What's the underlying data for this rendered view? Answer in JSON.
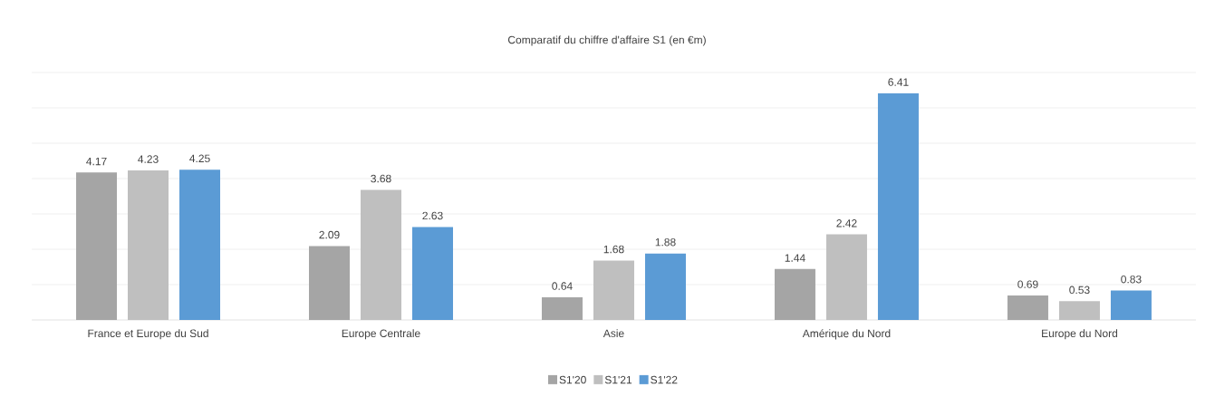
{
  "chart_data": {
    "type": "bar",
    "title": "Comparatif du chiffre d'affaire S1 (en €m)",
    "categories": [
      "France et Europe du Sud",
      "Europe Centrale",
      "Asie",
      "Amérique du Nord",
      "Europe du Nord"
    ],
    "series": [
      {
        "name": "S1'20",
        "color": "#a5a5a5",
        "values": [
          4.17,
          2.09,
          0.64,
          1.44,
          0.69
        ]
      },
      {
        "name": "S1'21",
        "color": "#bfbfbf",
        "values": [
          4.23,
          3.68,
          1.68,
          2.42,
          0.53
        ]
      },
      {
        "name": "S1'22",
        "color": "#5b9bd5",
        "values": [
          4.25,
          2.63,
          1.88,
          6.41,
          0.83
        ]
      }
    ],
    "ylim": [
      0,
      7
    ],
    "yticks": [
      {
        "value": 0,
        "label": null
      },
      {
        "value": 1,
        "label": null
      },
      {
        "value": 2,
        "label": null
      },
      {
        "value": 3,
        "label": null
      },
      {
        "value": 4,
        "label": null
      },
      {
        "value": 5,
        "label": null
      },
      {
        "value": 6,
        "label": null
      },
      {
        "value": 7,
        "label": null
      }
    ],
    "tick_labels": "x",
    "grid": "y",
    "data_labels": true,
    "legend": "bottom"
  }
}
